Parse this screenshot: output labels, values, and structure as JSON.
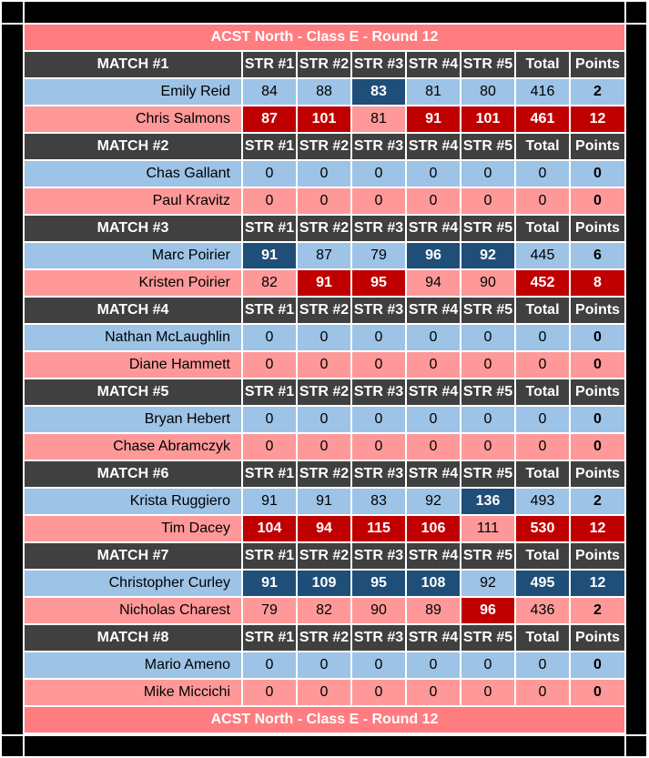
{
  "title": "ACST North - Class E - Round 12",
  "footer": "ACST North - Class E - Round 12",
  "columns": [
    "STR #1",
    "STR #2",
    "STR #3",
    "STR #4",
    "STR #5",
    "Total",
    "Points"
  ],
  "colors": {
    "title": "#FF7C80",
    "header": "#404040",
    "row_a": "#9DC3E6",
    "row_b": "#FF9999",
    "highlight_a": "#1F4E79",
    "highlight_b": "#C00000"
  },
  "matches": [
    {
      "label": "MATCH #1",
      "players": [
        {
          "name": "Emily Reid",
          "scores": [
            "84",
            "88",
            "83",
            "81",
            "80"
          ],
          "total": "416",
          "points": "2",
          "hl": [
            0,
            0,
            1,
            0,
            0,
            0,
            0
          ]
        },
        {
          "name": "Chris Salmons",
          "scores": [
            "87",
            "101",
            "81",
            "91",
            "101"
          ],
          "total": "461",
          "points": "12",
          "hl": [
            1,
            1,
            0,
            1,
            1,
            1,
            1
          ]
        }
      ]
    },
    {
      "label": "MATCH #2",
      "players": [
        {
          "name": "Chas Gallant",
          "scores": [
            "0",
            "0",
            "0",
            "0",
            "0"
          ],
          "total": "0",
          "points": "0",
          "hl": [
            0,
            0,
            0,
            0,
            0,
            0,
            0
          ]
        },
        {
          "name": "Paul Kravitz",
          "scores": [
            "0",
            "0",
            "0",
            "0",
            "0"
          ],
          "total": "0",
          "points": "0",
          "hl": [
            0,
            0,
            0,
            0,
            0,
            0,
            0
          ]
        }
      ]
    },
    {
      "label": "MATCH #3",
      "players": [
        {
          "name": "Marc Poirier",
          "scores": [
            "91",
            "87",
            "79",
            "96",
            "92"
          ],
          "total": "445",
          "points": "6",
          "hl": [
            1,
            0,
            0,
            1,
            1,
            0,
            0
          ]
        },
        {
          "name": "Kristen Poirier",
          "scores": [
            "82",
            "91",
            "95",
            "94",
            "90"
          ],
          "total": "452",
          "points": "8",
          "hl": [
            0,
            1,
            1,
            0,
            0,
            1,
            1
          ]
        }
      ]
    },
    {
      "label": "MATCH #4",
      "players": [
        {
          "name": "Nathan McLaughlin",
          "scores": [
            "0",
            "0",
            "0",
            "0",
            "0"
          ],
          "total": "0",
          "points": "0",
          "hl": [
            0,
            0,
            0,
            0,
            0,
            0,
            0
          ]
        },
        {
          "name": "Diane Hammett",
          "scores": [
            "0",
            "0",
            "0",
            "0",
            "0"
          ],
          "total": "0",
          "points": "0",
          "hl": [
            0,
            0,
            0,
            0,
            0,
            0,
            0
          ]
        }
      ]
    },
    {
      "label": "MATCH #5",
      "players": [
        {
          "name": "Bryan Hebert",
          "scores": [
            "0",
            "0",
            "0",
            "0",
            "0"
          ],
          "total": "0",
          "points": "0",
          "hl": [
            0,
            0,
            0,
            0,
            0,
            0,
            0
          ]
        },
        {
          "name": "Chase Abramczyk",
          "scores": [
            "0",
            "0",
            "0",
            "0",
            "0"
          ],
          "total": "0",
          "points": "0",
          "hl": [
            0,
            0,
            0,
            0,
            0,
            0,
            0
          ]
        }
      ]
    },
    {
      "label": "MATCH #6",
      "players": [
        {
          "name": "Krista Ruggiero",
          "scores": [
            "91",
            "91",
            "83",
            "92",
            "136"
          ],
          "total": "493",
          "points": "2",
          "hl": [
            0,
            0,
            0,
            0,
            1,
            0,
            0
          ]
        },
        {
          "name": "Tim Dacey",
          "scores": [
            "104",
            "94",
            "115",
            "106",
            "111"
          ],
          "total": "530",
          "points": "12",
          "hl": [
            1,
            1,
            1,
            1,
            0,
            1,
            1
          ]
        }
      ]
    },
    {
      "label": "MATCH #7",
      "players": [
        {
          "name": "Christopher Curley",
          "scores": [
            "91",
            "109",
            "95",
            "108",
            "92"
          ],
          "total": "495",
          "points": "12",
          "hl": [
            1,
            1,
            1,
            1,
            0,
            1,
            1
          ]
        },
        {
          "name": "Nicholas Charest",
          "scores": [
            "79",
            "82",
            "90",
            "89",
            "96"
          ],
          "total": "436",
          "points": "2",
          "hl": [
            0,
            0,
            0,
            0,
            1,
            0,
            0
          ]
        }
      ]
    },
    {
      "label": "MATCH #8",
      "players": [
        {
          "name": "Mario Ameno",
          "scores": [
            "0",
            "0",
            "0",
            "0",
            "0"
          ],
          "total": "0",
          "points": "0",
          "hl": [
            0,
            0,
            0,
            0,
            0,
            0,
            0
          ]
        },
        {
          "name": "Mike Miccichi",
          "scores": [
            "0",
            "0",
            "0",
            "0",
            "0"
          ],
          "total": "0",
          "points": "0",
          "hl": [
            0,
            0,
            0,
            0,
            0,
            0,
            0
          ]
        }
      ]
    }
  ]
}
